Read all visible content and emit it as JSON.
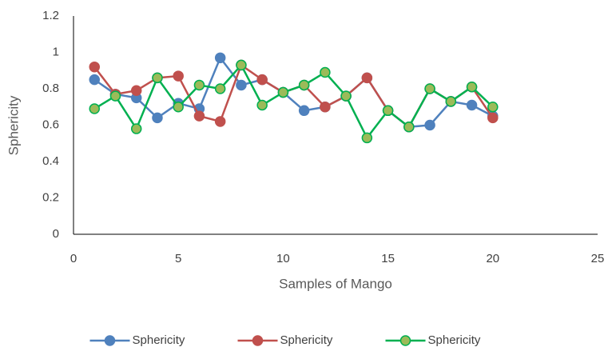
{
  "chart_data": {
    "type": "line",
    "x_label": "Samples of Mango",
    "y_label": "Sphericity",
    "x": [
      1,
      2,
      3,
      4,
      5,
      6,
      7,
      8,
      9,
      10,
      11,
      12,
      13,
      14,
      15,
      16,
      17,
      18,
      19,
      20
    ],
    "series": [
      {
        "name": "Sphericity",
        "color": "#4f81bd",
        "marker_color": "#4f81bd",
        "values": [
          0.85,
          0.77,
          0.75,
          0.64,
          0.72,
          0.69,
          0.97,
          0.82,
          0.85,
          0.78,
          0.68,
          0.7,
          0.76,
          0.86,
          0.68,
          0.59,
          0.6,
          0.73,
          0.71,
          0.65
        ]
      },
      {
        "name": "Sphericity",
        "color": "#c0504d",
        "marker_color": "#c0504d",
        "values": [
          0.92,
          0.77,
          0.79,
          0.86,
          0.87,
          0.65,
          0.62,
          0.93,
          0.85,
          0.78,
          0.82,
          0.7,
          0.76,
          0.86,
          0.68,
          0.59,
          0.8,
          0.73,
          0.81,
          0.64
        ]
      },
      {
        "name": "Sphericity",
        "color": "#00b050",
        "marker_color": "#9bbb59",
        "values": [
          0.69,
          0.76,
          0.58,
          0.86,
          0.7,
          0.82,
          0.8,
          0.93,
          0.71,
          0.78,
          0.82,
          0.89,
          0.76,
          0.53,
          0.68,
          0.59,
          0.8,
          0.73,
          0.81,
          0.7
        ]
      }
    ],
    "xlim": [
      0,
      25
    ],
    "xticks": [
      0,
      5,
      10,
      15,
      20,
      25
    ],
    "ylim": [
      0,
      1.2
    ],
    "yticks": [
      0,
      0.2,
      0.4,
      0.6,
      0.8,
      1,
      1.2
    ],
    "grid": false,
    "legend": "bottom"
  }
}
